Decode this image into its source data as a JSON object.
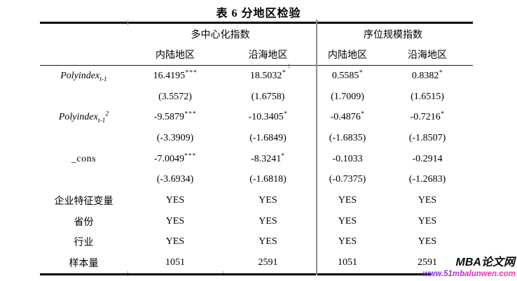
{
  "title": "表 6 分地区检验",
  "table": {
    "group_headers": [
      "多中心化指数",
      "序位规模指数"
    ],
    "column_headers": [
      "内陆地区",
      "沿海地区",
      "内陆地区",
      "沿海地区"
    ],
    "rows": [
      {
        "label": "Polyindex",
        "sub": "t-1",
        "sup": "",
        "c1": "16.4195",
        "s1": "***",
        "c2": "18.5032",
        "s2": "*",
        "c3": "0.5585",
        "s3": "*",
        "c4": "0.8382",
        "s4": "*"
      },
      {
        "label": "",
        "sub": "",
        "sup": "",
        "c1": "(3.5572)",
        "s1": "",
        "c2": "(1.6758)",
        "s2": "",
        "c3": "(1.7009)",
        "s3": "",
        "c4": "(1.6515)",
        "s4": ""
      },
      {
        "label": "Polyindex",
        "sub": "t-1",
        "sup": "2",
        "c1": "-9.5879",
        "s1": "***",
        "c2": "-10.3405",
        "s2": "*",
        "c3": "-0.4876",
        "s3": "*",
        "c4": "-0.7216",
        "s4": "*"
      },
      {
        "label": "",
        "sub": "",
        "sup": "",
        "c1": "(-3.3909)",
        "s1": "",
        "c2": "(-1.6849)",
        "s2": "",
        "c3": "(-1.6835)",
        "s3": "",
        "c4": "(-1.8507)",
        "s4": ""
      },
      {
        "label": "_cons",
        "sub": "",
        "sup": "",
        "c1": "-7.0049",
        "s1": "***",
        "c2": "-8.3241",
        "s2": "*",
        "c3": "-0.1033",
        "s3": "",
        "c4": "-0.2914",
        "s4": ""
      },
      {
        "label": "",
        "sub": "",
        "sup": "",
        "c1": "(-3.6934)",
        "s1": "",
        "c2": "(-1.6818)",
        "s2": "",
        "c3": "(-0.7375)",
        "s3": "",
        "c4": "(-1.2683)",
        "s4": ""
      },
      {
        "label": "企业特征变量",
        "sub": "",
        "sup": "",
        "c1": "YES",
        "s1": "",
        "c2": "YES",
        "s2": "",
        "c3": "YES",
        "s3": "",
        "c4": "YES",
        "s4": ""
      },
      {
        "label": "省份",
        "sub": "",
        "sup": "",
        "c1": "YES",
        "s1": "",
        "c2": "YES",
        "s2": "",
        "c3": "YES",
        "s3": "",
        "c4": "YES",
        "s4": ""
      },
      {
        "label": "行业",
        "sub": "",
        "sup": "",
        "c1": "YES",
        "s1": "",
        "c2": "YES",
        "s2": "",
        "c3": "YES",
        "s3": "",
        "c4": "YES",
        "s4": ""
      },
      {
        "label": "样本量",
        "sub": "",
        "sup": "",
        "c1": "1051",
        "s1": "",
        "c2": "2591",
        "s2": "",
        "c3": "1051",
        "s3": "",
        "c4": "2591",
        "s4": ""
      }
    ]
  },
  "watermark": {
    "brand": "MBA论文网",
    "url": "www.51mbalunwen.com"
  },
  "colors": {
    "rule": "#000000",
    "divider": "#8f8f8f",
    "url_gradient_start": "#6f2fe0",
    "url_gradient_end": "#ff3fa0"
  }
}
